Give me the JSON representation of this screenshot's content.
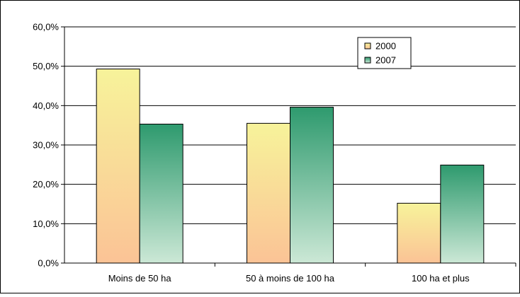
{
  "chart_data": {
    "type": "bar",
    "categories": [
      "Moins de 50 ha",
      "50 à moins de 100 ha",
      "100 ha et plus"
    ],
    "series": [
      {
        "name": "2000",
        "values": [
          49.3,
          35.5,
          15.2
        ]
      },
      {
        "name": "2007",
        "values": [
          35.3,
          39.6,
          24.9
        ]
      }
    ],
    "y_ticks": [
      "0,0%",
      "10,0%",
      "20,0%",
      "30,0%",
      "40,0%",
      "50,0%",
      "60,0%"
    ],
    "ylim": [
      0,
      60
    ],
    "grid": true,
    "legend_position": "top-right",
    "colors": {
      "2000": {
        "top": "#f7f39a",
        "bottom": "#fbc396",
        "stroke": "#000000"
      },
      "2007": {
        "top": "#2e9a6e",
        "bottom": "#cce8d6",
        "stroke": "#000000"
      }
    }
  }
}
